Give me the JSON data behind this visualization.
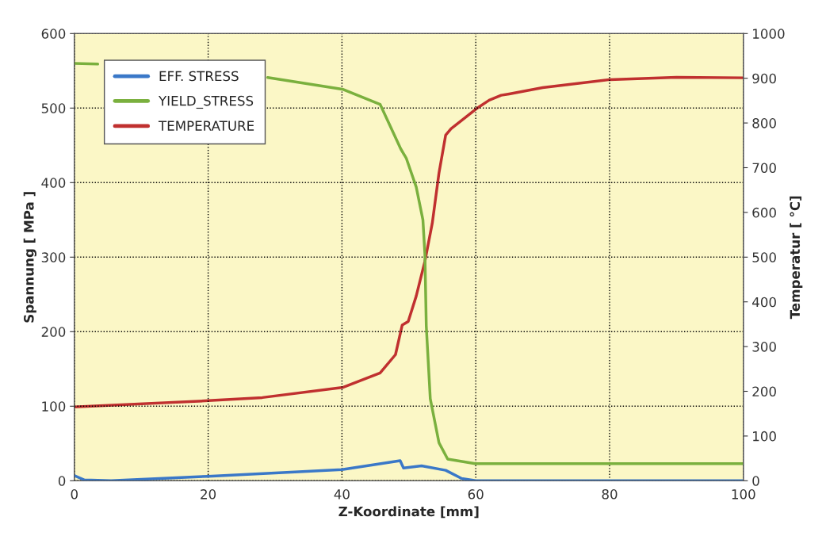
{
  "chart_data": {
    "type": "line",
    "xlabel": "Z-Koordinate [mm]",
    "ylabel": "Spannung [ MPa ]",
    "y2label": "Temperatur [ °C]",
    "xlim": [
      0,
      100
    ],
    "xticks": [
      0,
      20,
      40,
      60,
      80,
      100
    ],
    "ylim": [
      0,
      600
    ],
    "yticks": [
      0,
      100,
      200,
      300,
      400,
      500,
      600
    ],
    "y2lim": [
      0,
      1000
    ],
    "y2ticks": [
      0,
      100,
      200,
      300,
      400,
      500,
      600,
      700,
      800,
      900,
      1000
    ],
    "grid": true,
    "legend": "top left",
    "line_style": "solid",
    "marker": "none",
    "series": [
      {
        "name": "EFF. STRESS",
        "color": "#3a78c8",
        "x": [
          0,
          1.5,
          5.5,
          20,
          40,
          48.7,
          49.2,
          51.9,
          55.5,
          57.9,
          60,
          80,
          100
        ],
        "values": [
          7,
          1,
          0,
          6,
          15,
          27,
          17,
          20,
          14,
          3,
          0,
          0,
          0
        ]
      },
      {
        "name": "YIELD_STRESS",
        "color": "#7ab03e",
        "x": [
          0,
          3.5,
          5,
          28.9,
          40.2,
          45.7,
          48.8,
          49.6,
          51.1,
          52.1,
          52.4,
          52.6,
          53.2,
          54.5,
          55.8,
          59.9,
          80,
          100
        ],
        "values": [
          560,
          559,
          null,
          541,
          525,
          505,
          445,
          433,
          394,
          350,
          303,
          208,
          110,
          51,
          29,
          23,
          23,
          23
        ]
      },
      {
        "name": "TEMPERATURE",
        "color": "#c0302f",
        "axis": "y2",
        "x": [
          0,
          20,
          28.1,
          40.2,
          45.7,
          48,
          49,
          49.9,
          51.1,
          52.4,
          53.5,
          54.5,
          55.5,
          56.3,
          58.6,
          60.1,
          62,
          63.8,
          65,
          70,
          80,
          90,
          100
        ],
        "values": [
          165,
          179,
          186,
          209,
          241,
          282,
          348,
          356,
          413,
          491,
          576,
          688,
          773,
          787,
          814,
          832,
          851,
          862,
          865,
          879,
          897,
          902,
          901
        ]
      }
    ]
  }
}
